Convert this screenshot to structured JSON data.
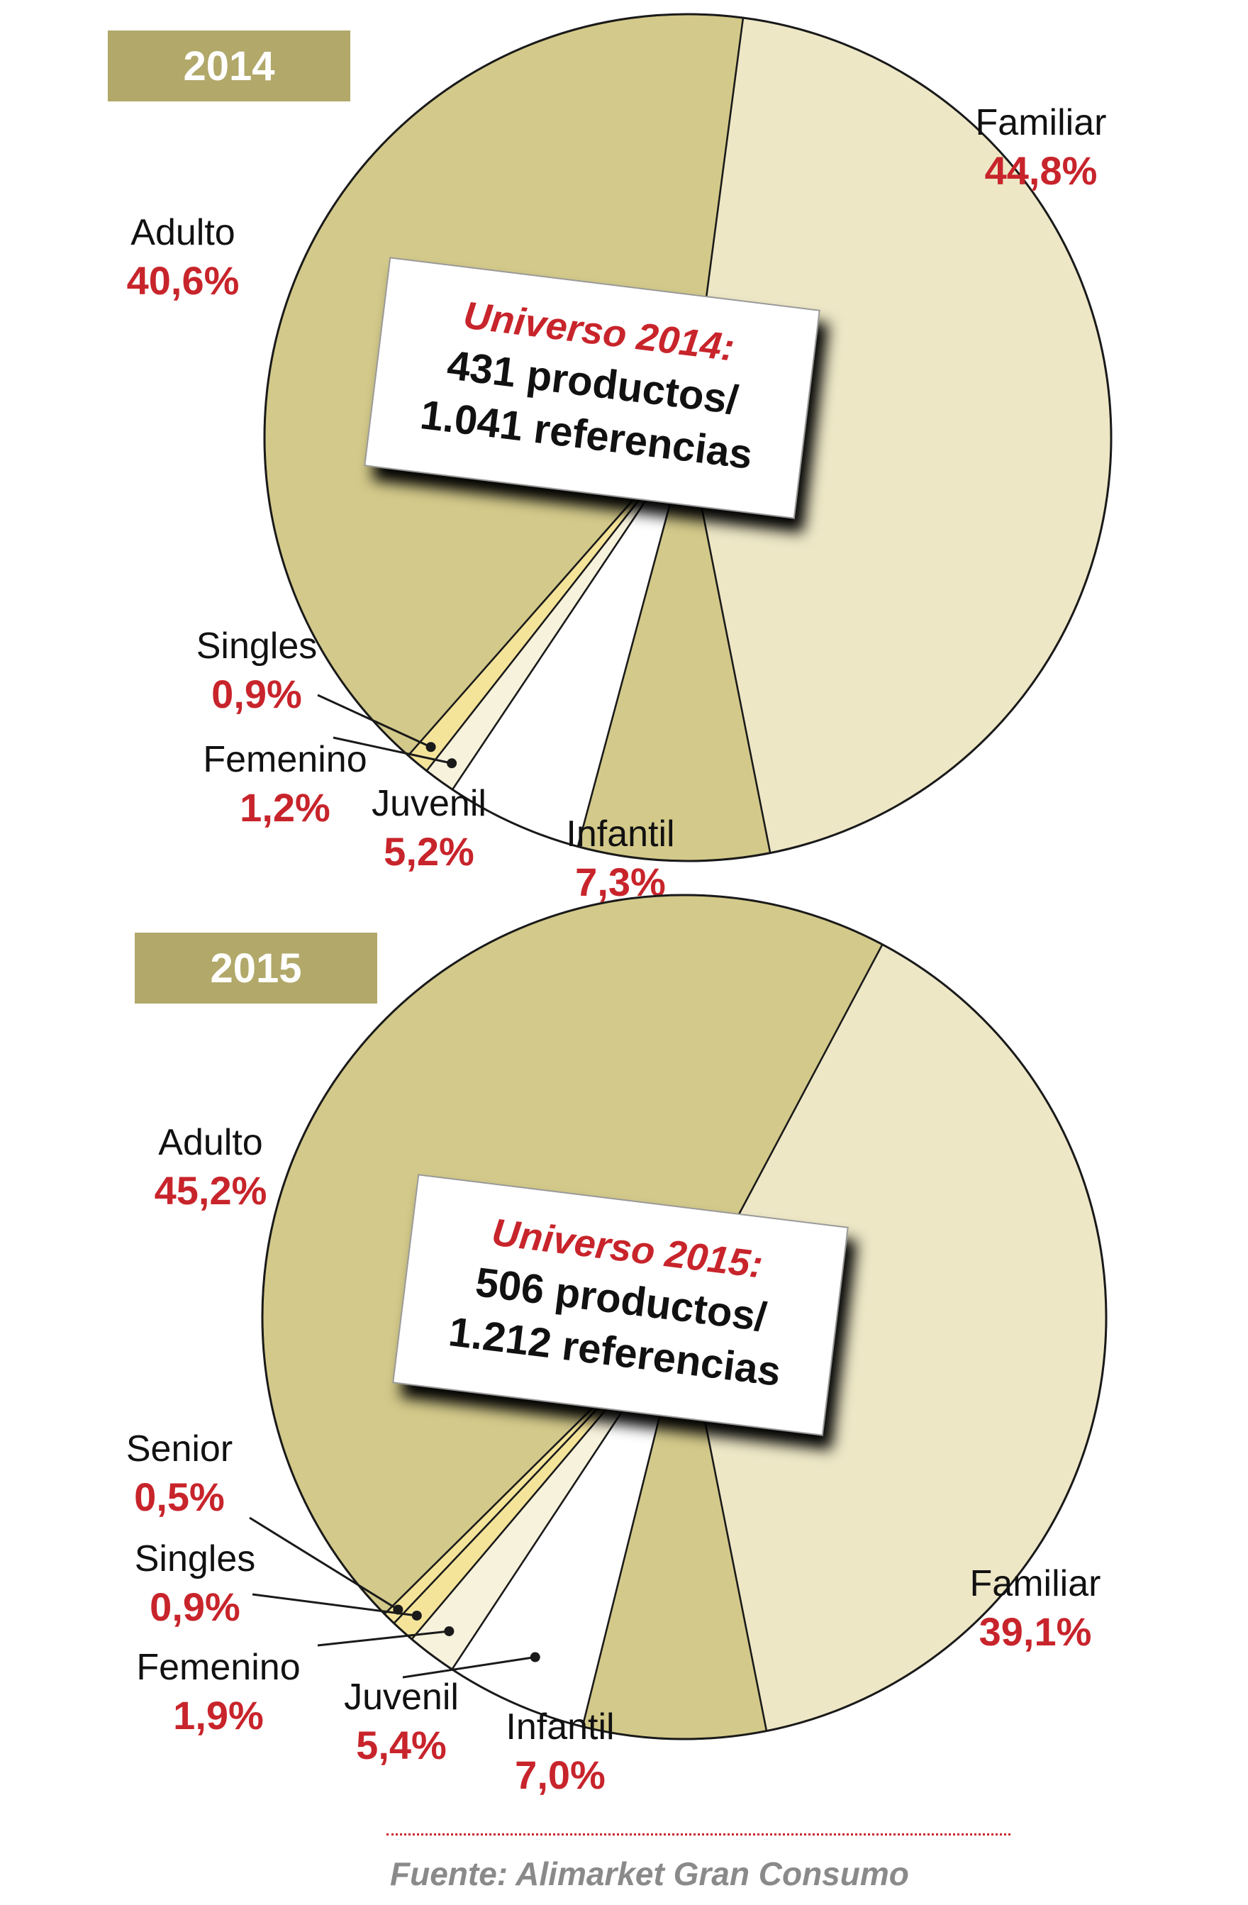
{
  "colors": {
    "badge": "#b1a86a",
    "dark": "#d3c98a",
    "light": "#ede7c6",
    "pale": "#f7f2dc",
    "yellow": "#f4e49a",
    "white": "#ffffff",
    "pct": "#c8242b",
    "stroke": "#1a1a1a"
  },
  "chart_data": [
    {
      "type": "pie",
      "title": "2014",
      "note": {
        "title": "Universo 2014:",
        "line1": "431 productos/",
        "line2": "1.041 referencias"
      },
      "slices": [
        {
          "label": "Familiar",
          "pct_text": "44,8%",
          "value": 44.8,
          "fill": "light"
        },
        {
          "label": "Infantil",
          "pct_text": "7,3%",
          "value": 7.3,
          "fill": "dark"
        },
        {
          "label": "Juvenil",
          "pct_text": "5,2%",
          "value": 5.2,
          "fill": "white"
        },
        {
          "label": "Femenino",
          "pct_text": "1,2%",
          "value": 1.2,
          "fill": "pale"
        },
        {
          "label": "Singles",
          "pct_text": "0,9%",
          "value": 0.9,
          "fill": "yellow"
        },
        {
          "label": "Adulto",
          "pct_text": "40,6%",
          "value": 40.6,
          "fill": "dark"
        }
      ]
    },
    {
      "type": "pie",
      "title": "2015",
      "note": {
        "title": "Universo 2015:",
        "line1": "506 productos/",
        "line2": "1.212 referencias"
      },
      "slices": [
        {
          "label": "Familiar",
          "pct_text": "39,1%",
          "value": 39.1,
          "fill": "light"
        },
        {
          "label": "Infantil",
          "pct_text": "7,0%",
          "value": 7.0,
          "fill": "dark"
        },
        {
          "label": "Juvenil",
          "pct_text": "5,4%",
          "value": 5.4,
          "fill": "white"
        },
        {
          "label": "Femenino",
          "pct_text": "1,9%",
          "value": 1.9,
          "fill": "pale"
        },
        {
          "label": "Singles",
          "pct_text": "0,9%",
          "value": 0.9,
          "fill": "yellow"
        },
        {
          "label": "Senior",
          "pct_text": "0,5%",
          "value": 0.5,
          "fill": "yellow"
        },
        {
          "label": "Adulto",
          "pct_text": "45,2%",
          "value": 45.2,
          "fill": "dark"
        }
      ]
    }
  ],
  "source": "Fuente: Alimarket Gran Consumo"
}
